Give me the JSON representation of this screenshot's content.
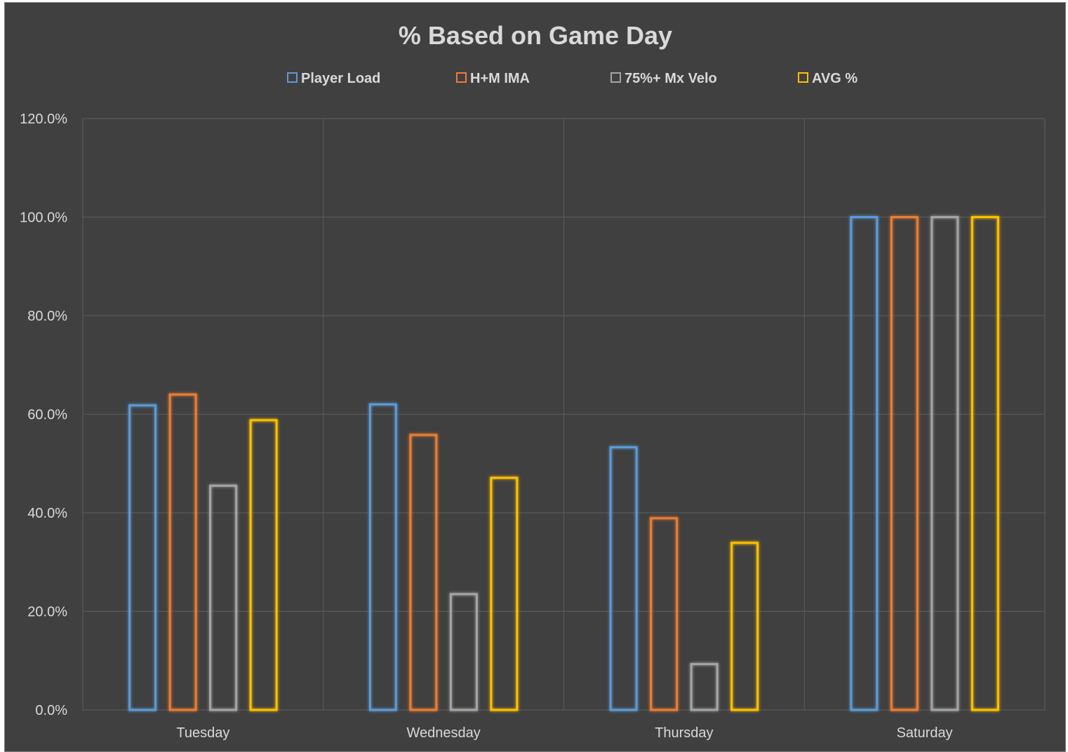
{
  "chart_data": {
    "type": "bar",
    "title": "% Based on Game Day",
    "categories": [
      "Tuesday",
      "Wednesday",
      "Thursday",
      "Saturday"
    ],
    "series": [
      {
        "name": "Player Load",
        "color": "#5b9bd5",
        "values": [
          61.8,
          62.0,
          53.3,
          100.0
        ]
      },
      {
        "name": "H+M IMA",
        "color": "#ed7d31",
        "values": [
          64.0,
          55.8,
          38.9,
          100.0
        ]
      },
      {
        "name": "75%+ Mx Velo",
        "color": "#a5a5a5",
        "values": [
          45.5,
          23.5,
          9.3,
          100.0
        ]
      },
      {
        "name": "AVG %",
        "color": "#ffc000",
        "values": [
          58.8,
          47.1,
          33.9,
          100.0
        ]
      }
    ],
    "y_ticks": [
      "0.0%",
      "20.0%",
      "40.0%",
      "60.0%",
      "80.0%",
      "100.0%",
      "120.0%"
    ],
    "ylim": [
      0,
      120
    ],
    "xlabel": "",
    "ylabel": "",
    "grid": true,
    "legend_position": "top",
    "bar_style": "outline-glow",
    "background_color": "#404040",
    "text_color": "#d9d9d9",
    "grid_color": "#595959"
  }
}
